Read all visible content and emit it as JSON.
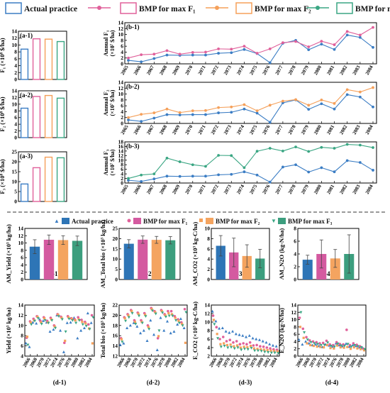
{
  "colors": {
    "actual": "#3b7dc4",
    "bmp_f1": "#e0609a",
    "bmp_f2": "#f5a05a",
    "bmp_f3": "#3aa683",
    "bar_actual": "#2e75b6",
    "bar_f1": "#d45aa0",
    "bar_f2": "#f4a460",
    "bar_f3": "#3c9e7e"
  },
  "top_legend": {
    "actual": "Actual practice",
    "f1": "BMP for max F₁",
    "f2": "BMP for max F₂",
    "f3": "BMP for max F₃"
  },
  "mid_legend": {
    "actual": "Actual practice",
    "f1": "BMP for max F₁",
    "f2": "BMP for max F₂",
    "f3": "BMP for max F₃"
  },
  "chart_data": [
    {
      "id": "a-1",
      "type": "bar",
      "panel_label": "(a-1)",
      "ylabel": "F₁ (×10⁸ $/ha)",
      "ylim": [
        0,
        14
      ],
      "yticks": [
        0,
        2,
        4,
        6,
        8,
        10,
        12,
        14
      ],
      "categories": [
        "Actual practice",
        "BMP for max F1",
        "BMP for max F2",
        "BMP for max F3"
      ],
      "values": [
        8.8,
        11.8,
        11.7,
        11.0
      ]
    },
    {
      "id": "a-2",
      "type": "bar",
      "panel_label": "(a-2)",
      "ylabel": "F₂ (×10⁸ $/ha)",
      "ylim": [
        0,
        14
      ],
      "yticks": [
        0,
        2,
        4,
        6,
        8,
        10,
        12,
        14
      ],
      "categories": [
        "Actual practice",
        "BMP for max F1",
        "BMP for max F2",
        "BMP for max F3"
      ],
      "values": [
        8.8,
        12.3,
        12.6,
        11.8
      ]
    },
    {
      "id": "a-3",
      "type": "bar",
      "panel_label": "(a-3)",
      "ylabel": "F₃ (×10⁸ $/ha)",
      "ylim": [
        0,
        25
      ],
      "yticks": [
        0,
        5,
        10,
        15,
        20,
        25
      ],
      "categories": [
        "Actual practice",
        "BMP for max F1",
        "BMP for max F2",
        "BMP for max F3"
      ],
      "values": [
        8.8,
        17.0,
        22.3,
        22.0
      ]
    },
    {
      "id": "b-1",
      "type": "line",
      "panel_label": "(b-1)",
      "ylabel": "Annual F₁",
      "ylabel2": "(×10⁷ $/ha)",
      "ylim": [
        0,
        14
      ],
      "yticks": [
        0,
        2,
        4,
        6,
        8,
        10,
        12,
        14
      ],
      "x": [
        "2065",
        "2066",
        "2067",
        "2068",
        "2069",
        "2070",
        "2071",
        "2072",
        "2073",
        "2074",
        "2075",
        "2076",
        "2077",
        "2078",
        "2079",
        "2080",
        "2081",
        "2082",
        "2083",
        "2084"
      ],
      "series": [
        {
          "name": "Actual practice",
          "values": [
            1.2,
            0.7,
            1.8,
            3.0,
            2.9,
            3.0,
            3.0,
            3.6,
            3.8,
            4.9,
            3.5,
            0.4,
            7.0,
            8.0,
            4.8,
            6.7,
            4.9,
            9.8,
            9.0,
            5.6
          ]
        },
        {
          "name": "BMP for max F1",
          "values": [
            2.0,
            3.1,
            3.3,
            4.5,
            3.3,
            3.9,
            4.0,
            5.1,
            5.0,
            6.0,
            3.6,
            5.1,
            7.2,
            7.6,
            5.8,
            7.7,
            6.5,
            11.0,
            9.8,
            12.4
          ]
        }
      ]
    },
    {
      "id": "b-2",
      "type": "line",
      "panel_label": "(b-2)",
      "ylabel": "Annual F₂",
      "ylabel2": "(×10⁷ $/ha)",
      "ylim": [
        0,
        14
      ],
      "yticks": [
        0,
        2,
        4,
        6,
        8,
        10,
        12,
        14
      ],
      "x": [
        "2065",
        "2066",
        "2067",
        "2068",
        "2069",
        "2070",
        "2071",
        "2072",
        "2073",
        "2074",
        "2075",
        "2076",
        "2077",
        "2078",
        "2079",
        "2080",
        "2081",
        "2082",
        "2083",
        "2084"
      ],
      "series": [
        {
          "name": "Actual practice",
          "values": [
            1.2,
            0.7,
            1.8,
            3.0,
            2.9,
            3.0,
            3.0,
            3.6,
            3.8,
            4.9,
            3.5,
            0.4,
            7.0,
            8.0,
            4.8,
            6.7,
            4.9,
            9.8,
            9.0,
            5.6
          ]
        },
        {
          "name": "BMP for max F2",
          "values": [
            2.0,
            3.1,
            3.6,
            4.9,
            3.7,
            4.3,
            4.4,
            5.4,
            5.6,
            6.4,
            4.3,
            6.2,
            7.6,
            8.1,
            6.2,
            8.0,
            6.8,
            11.5,
            10.7,
            12.2
          ]
        }
      ]
    },
    {
      "id": "b-3",
      "type": "line",
      "panel_label": "(b-3)",
      "ylabel": "Annual F₃",
      "ylabel2": "(×10⁷ $/ha)",
      "ylim": [
        0,
        18
      ],
      "yticks": [
        0,
        2,
        4,
        6,
        8,
        10,
        12,
        14,
        16,
        18
      ],
      "x": [
        "2065",
        "2066",
        "2067",
        "2068",
        "2069",
        "2070",
        "2071",
        "2072",
        "2073",
        "2074",
        "2075",
        "2076",
        "2077",
        "2078",
        "2079",
        "2080",
        "2081",
        "2082",
        "2083",
        "2084"
      ],
      "series": [
        {
          "name": "Actual practice",
          "values": [
            1.2,
            0.7,
            1.8,
            3.0,
            2.9,
            3.0,
            3.0,
            3.6,
            3.8,
            4.9,
            3.5,
            0.4,
            7.0,
            8.0,
            4.8,
            6.7,
            4.9,
            9.8,
            9.0,
            5.6
          ]
        },
        {
          "name": "BMP for max F3",
          "values": [
            2.0,
            3.5,
            4.0,
            10.9,
            9.3,
            8.0,
            7.3,
            12.1,
            12.0,
            6.7,
            13.9,
            15.2,
            14.0,
            15.8,
            13.8,
            15.6,
            15.2,
            16.9,
            16.6,
            15.5
          ]
        }
      ]
    },
    {
      "id": "c-1",
      "type": "bar",
      "panel_label": "(c-1)",
      "ylabel": "AM_Yield (×10³ kg/ha)",
      "ylim": [
        0,
        14
      ],
      "yticks": [
        0,
        2,
        4,
        6,
        8,
        10,
        12,
        14
      ],
      "categories": [
        "Actual practice",
        "BMP for max F1",
        "BMP for max F2",
        "BMP for max F3"
      ],
      "values": [
        9.0,
        10.9,
        10.8,
        10.6
      ],
      "errors": [
        1.9,
        1.3,
        1.2,
        1.3
      ]
    },
    {
      "id": "c-2",
      "type": "bar",
      "panel_label": "(c-2)",
      "ylabel": "AM_Total bio (×10³ kg/ha)",
      "ylim": [
        0,
        25
      ],
      "yticks": [
        0,
        5,
        10,
        15,
        20,
        25
      ],
      "categories": [
        "Actual practice",
        "BMP for max F1",
        "BMP for max F2",
        "BMP for max F3"
      ],
      "values": [
        17.5,
        19.5,
        19.4,
        19.2
      ],
      "errors": [
        2.0,
        1.8,
        1.7,
        1.8
      ]
    },
    {
      "id": "c-3",
      "type": "bar",
      "panel_label": "(c-3)",
      "ylabel": "AM_CO2 (×10³ kg-C/ha)",
      "ylim": [
        0,
        10
      ],
      "yticks": [
        0,
        2,
        4,
        6,
        8,
        10
      ],
      "categories": [
        "Actual practice",
        "BMP for max F1",
        "BMP for max F2",
        "BMP for max F3"
      ],
      "values": [
        6.6,
        5.3,
        4.6,
        4.1
      ],
      "errors": [
        2.0,
        2.8,
        2.2,
        1.8
      ]
    },
    {
      "id": "c-4",
      "type": "bar",
      "panel_label": "(c-4)",
      "ylabel": "AM_N2O (kg-N/ha)",
      "ylim": [
        0,
        8
      ],
      "yticks": [
        0,
        2,
        4,
        6,
        8
      ],
      "categories": [
        "Actual practice",
        "BMP for max F1",
        "BMP for max F2",
        "BMP for max F3"
      ],
      "values": [
        3.1,
        4.0,
        3.3,
        4.0
      ],
      "errors": [
        0.7,
        2.2,
        1.4,
        3.0
      ]
    },
    {
      "id": "d-1",
      "type": "scatter",
      "panel_label": "(d-1)",
      "ylabel": "Yield (×10³ kg/ha)",
      "ylim": [
        4,
        14
      ],
      "yticks": [
        4,
        6,
        8,
        10,
        12,
        14
      ],
      "x": [
        2065,
        2066,
        2067,
        2068,
        2069,
        2070,
        2071,
        2072,
        2073,
        2074,
        2075,
        2076,
        2077,
        2078,
        2079,
        2080,
        2081,
        2082,
        2083,
        2084
      ],
      "xticks": [
        "2066",
        "2068",
        "2070",
        "2072",
        "2074",
        "2076",
        "2078",
        "2080",
        "2082",
        "2084"
      ],
      "series": [
        {
          "name": "Actual practice",
          "values": [
            6.5,
            5.8,
            10.6,
            10.4,
            11.2,
            10.9,
            10.6,
            8.8,
            9.2,
            12.0,
            9.0,
            4.8,
            10.5,
            10.6,
            11.5,
            7.5,
            9.0,
            9.5,
            12.4,
            10.5
          ]
        },
        {
          "name": "BMP for max F1",
          "values": [
            7.6,
            10.8,
            11.3,
            11.8,
            10.9,
            11.6,
            10.9,
            11.5,
            10.0,
            12.2,
            11.7,
            6.6,
            11.8,
            11.4,
            11.2,
            11.6,
            11.1,
            10.7,
            10.2,
            12.0
          ]
        },
        {
          "name": "BMP for max F2",
          "values": [
            7.8,
            10.6,
            11.0,
            11.7,
            10.6,
            11.4,
            10.6,
            11.2,
            9.8,
            12.1,
            11.5,
            7.0,
            11.6,
            11.3,
            11.0,
            11.2,
            10.7,
            10.4,
            9.4,
            6.5
          ]
        },
        {
          "name": "BMP for max F3",
          "values": [
            6.2,
            10.2,
            10.9,
            11.4,
            10.3,
            11.0,
            10.5,
            11.0,
            9.5,
            11.8,
            11.2,
            8.8,
            11.3,
            11.0,
            10.5,
            11.0,
            10.2,
            9.9,
            9.3,
            11.6
          ]
        }
      ]
    },
    {
      "id": "d-2",
      "type": "scatter",
      "panel_label": "(d-2)",
      "ylabel": "Total bio (×10³ kg/ha)",
      "ylim": [
        12,
        22
      ],
      "yticks": [
        12,
        14,
        16,
        18,
        20,
        22
      ],
      "x": [
        2065,
        2066,
        2067,
        2068,
        2069,
        2070,
        2071,
        2072,
        2073,
        2074,
        2075,
        2076,
        2077,
        2078,
        2079,
        2080,
        2081,
        2082,
        2083,
        2084
      ],
      "xticks": [
        "2066",
        "2068",
        "2070",
        "2072",
        "2074",
        "2076",
        "2078",
        "2080",
        "2082",
        "2084"
      ],
      "series": [
        {
          "name": "Actual practice",
          "values": [
            14.2,
            14.5,
            17.5,
            18.0,
            18.5,
            17.8,
            16.5,
            17.0,
            15.0,
            19.0,
            16.2,
            13.2,
            19.5,
            17.0,
            18.8,
            16.5,
            16.8,
            18.2,
            19.3,
            17.5
          ]
        },
        {
          "name": "BMP for max F1",
          "values": [
            15.5,
            19.6,
            20.2,
            21.0,
            19.0,
            20.5,
            19.0,
            20.4,
            18.0,
            21.4,
            20.8,
            15.5,
            21.0,
            20.2,
            20.8,
            20.8,
            19.8,
            19.2,
            18.6,
            21.2
          ]
        },
        {
          "name": "BMP for max F2",
          "values": [
            15.3,
            19.4,
            20.0,
            20.8,
            18.7,
            20.3,
            18.7,
            20.1,
            17.7,
            21.2,
            20.6,
            15.9,
            20.8,
            20.0,
            20.4,
            20.2,
            19.5,
            18.9,
            18.3,
            14.6
          ]
        },
        {
          "name": "BMP for max F3",
          "values": [
            14.8,
            18.9,
            19.6,
            20.4,
            18.3,
            19.9,
            18.5,
            19.8,
            17.3,
            20.9,
            20.3,
            17.0,
            20.5,
            19.7,
            19.9,
            19.9,
            19.0,
            18.5,
            18.0,
            20.6
          ]
        }
      ]
    },
    {
      "id": "d-3",
      "type": "scatter",
      "panel_label": "(d-3)",
      "ylabel": "E_CO2 (×10³ kg-C/ha)",
      "ylim": [
        2,
        14
      ],
      "yticks": [
        2,
        4,
        6,
        8,
        10,
        12,
        14
      ],
      "x": [
        2065,
        2066,
        2067,
        2068,
        2069,
        2070,
        2071,
        2072,
        2073,
        2074,
        2075,
        2076,
        2077,
        2078,
        2079,
        2080,
        2081,
        2082,
        2083,
        2084
      ],
      "xticks": [
        "2066",
        "2068",
        "2070",
        "2072",
        "2074",
        "2076",
        "2078",
        "2080",
        "2082",
        "2084"
      ],
      "series": [
        {
          "name": "Actual practice",
          "values": [
            12.5,
            10.2,
            8.5,
            8.6,
            7.8,
            7.5,
            7.8,
            7.2,
            7.0,
            6.8,
            6.5,
            6.8,
            6.2,
            6.0,
            5.8,
            5.5,
            5.2,
            4.8,
            4.5,
            4.3
          ]
        },
        {
          "name": "BMP for max F1",
          "values": [
            11.5,
            8.8,
            6.0,
            6.5,
            5.5,
            5.8,
            5.2,
            5.5,
            4.8,
            5.0,
            4.8,
            5.2,
            4.5,
            4.6,
            4.3,
            4.2,
            4.0,
            3.8,
            3.6,
            3.5
          ]
        },
        {
          "name": "BMP for max F2",
          "values": [
            10.5,
            7.2,
            4.8,
            5.0,
            4.6,
            4.7,
            4.3,
            4.5,
            4.0,
            4.2,
            4.1,
            4.4,
            3.8,
            3.7,
            3.6,
            3.5,
            3.4,
            3.3,
            3.2,
            3.1
          ]
        },
        {
          "name": "BMP for max F3",
          "values": [
            9.5,
            6.2,
            4.2,
            4.4,
            4.0,
            4.1,
            3.8,
            4.0,
            3.5,
            3.7,
            3.6,
            3.9,
            3.3,
            3.3,
            3.2,
            3.0,
            2.9,
            2.8,
            2.8,
            2.7
          ]
        }
      ]
    },
    {
      "id": "d-4",
      "type": "scatter",
      "panel_label": "(d-4)",
      "ylabel": "E_N2O (kg-N/ha)",
      "ylim": [
        0,
        14
      ],
      "yticks": [
        0,
        2,
        4,
        6,
        8,
        10,
        12,
        14
      ],
      "x": [
        2065,
        2066,
        2067,
        2068,
        2069,
        2070,
        2071,
        2072,
        2073,
        2074,
        2075,
        2076,
        2077,
        2078,
        2079,
        2080,
        2081,
        2082,
        2083,
        2084
      ],
      "xticks": [
        "2066",
        "2068",
        "2070",
        "2072",
        "2074",
        "2076",
        "2078",
        "2080",
        "2082",
        "2084"
      ],
      "series": [
        {
          "name": "Actual practice",
          "values": [
            4.5,
            3.2,
            4.0,
            3.5,
            3.0,
            3.2,
            2.8,
            2.5,
            3.2,
            2.9,
            2.6,
            3.5,
            3.0,
            2.7,
            3.4,
            2.6,
            3.0,
            2.8,
            2.4,
            2.2
          ]
        },
        {
          "name": "BMP for max F1",
          "values": [
            10.5,
            7.5,
            5.2,
            4.3,
            4.0,
            3.8,
            3.5,
            3.6,
            4.2,
            3.2,
            3.0,
            3.8,
            3.3,
            3.2,
            7.2,
            3.0,
            3.5,
            3.1,
            2.7,
            2.0
          ]
        },
        {
          "name": "BMP for max F2",
          "values": [
            8.0,
            5.0,
            3.5,
            3.0,
            2.8,
            2.6,
            2.5,
            2.4,
            3.0,
            2.2,
            2.1,
            2.9,
            2.4,
            2.3,
            2.5,
            2.0,
            2.4,
            2.1,
            1.9,
            1.6
          ]
        },
        {
          "name": "BMP for max F3",
          "values": [
            12.0,
            6.5,
            4.5,
            3.8,
            3.5,
            3.3,
            3.0,
            3.1,
            3.7,
            2.8,
            2.6,
            3.4,
            2.9,
            2.8,
            3.3,
            2.6,
            3.0,
            2.7,
            2.4,
            1.9
          ]
        }
      ]
    }
  ]
}
